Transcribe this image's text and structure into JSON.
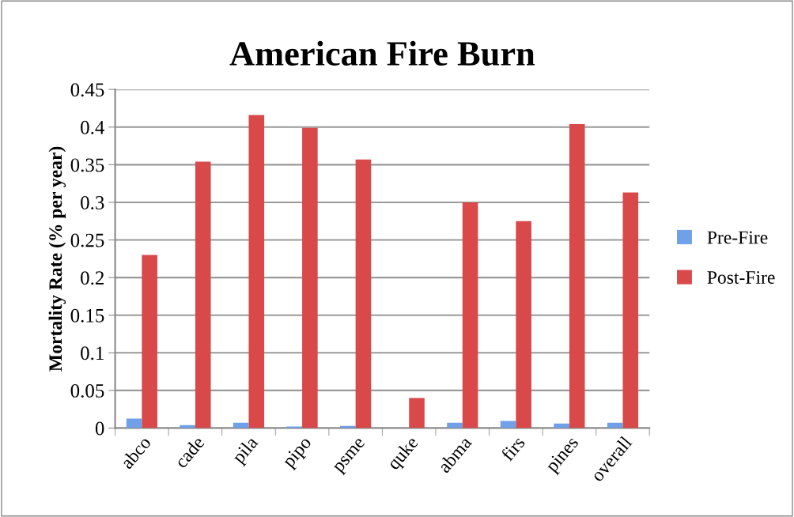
{
  "chart_data": {
    "type": "bar",
    "title": "American Fire Burn",
    "ylabel": "Mortality Rate (% per year)",
    "categories": [
      "abco",
      "cade",
      "pila",
      "pipo",
      "psme",
      "quke",
      "abma",
      "firs",
      "pines",
      "overall"
    ],
    "series": [
      {
        "name": "Pre-Fire",
        "color": "#6fa0e8",
        "values": [
          0.0126,
          0.004,
          0.007,
          0.002,
          0.003,
          0,
          0.007,
          0.0095,
          0.006,
          0.007
        ]
      },
      {
        "name": "Post-Fire",
        "color": "#d9494a",
        "values": [
          0.23,
          0.354,
          0.416,
          0.399,
          0.357,
          0.04,
          0.3,
          0.275,
          0.404,
          0.313
        ]
      }
    ],
    "ylim": [
      0,
      0.45
    ],
    "yticks": [
      0,
      0.05,
      0.1,
      0.15,
      0.2,
      0.25,
      0.3,
      0.35,
      0.4,
      0.45
    ],
    "grid": "y",
    "legend": "right"
  }
}
